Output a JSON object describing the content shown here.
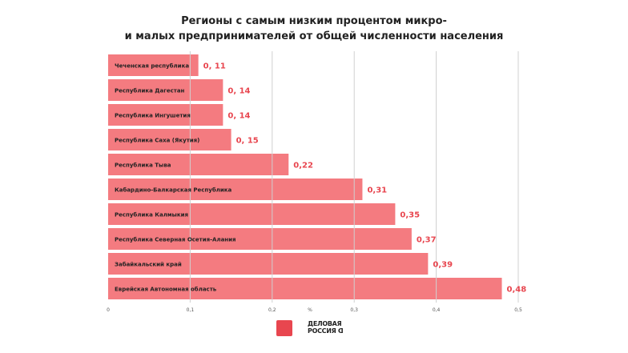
{
  "chart_data": {
    "type": "bar",
    "orientation": "horizontal",
    "title": "Регионы с самым низким процентом микро- и малых предпринимателей от общей численности населения",
    "title_lines": [
      "Регионы с самым низким процентом микро-",
      "и малых предпринимателей от общей численности населения"
    ],
    "categories": [
      "Чеченская республика",
      "Республика Дагестан",
      "Республика Ингушетия",
      "Республика Саха (Якутия)",
      "Республика Тыва",
      "Кабардино-Балкарская Республика",
      "Республика Калмыкия",
      "Республика Северная Осетия-Алания",
      "Забайкальский край",
      "Еврейская Автономная область"
    ],
    "values": [
      0.11,
      0.14,
      0.14,
      0.15,
      0.22,
      0.31,
      0.35,
      0.37,
      0.39,
      0.48
    ],
    "value_labels": [
      "0, 11",
      "0, 14",
      "0, 14",
      "0, 15",
      "0,22",
      "0,31",
      "0,35",
      "0,37",
      "0,39",
      "0,48"
    ],
    "xlabel": "%",
    "xlim": [
      0,
      0.5
    ],
    "xticks": [
      "0",
      "0,1",
      "0,2",
      "0,3",
      "0,4",
      "0,5"
    ],
    "xtick_values": [
      0,
      0.1,
      0.2,
      0.3,
      0.4,
      0.5
    ],
    "grid": true,
    "colors": {
      "bar": "#f47b80",
      "value_label": "#e8464f",
      "grid": "#d0d0d0"
    }
  },
  "footer": {
    "logo_text": "ДЕЛОВАЯ РОССИЯ"
  }
}
